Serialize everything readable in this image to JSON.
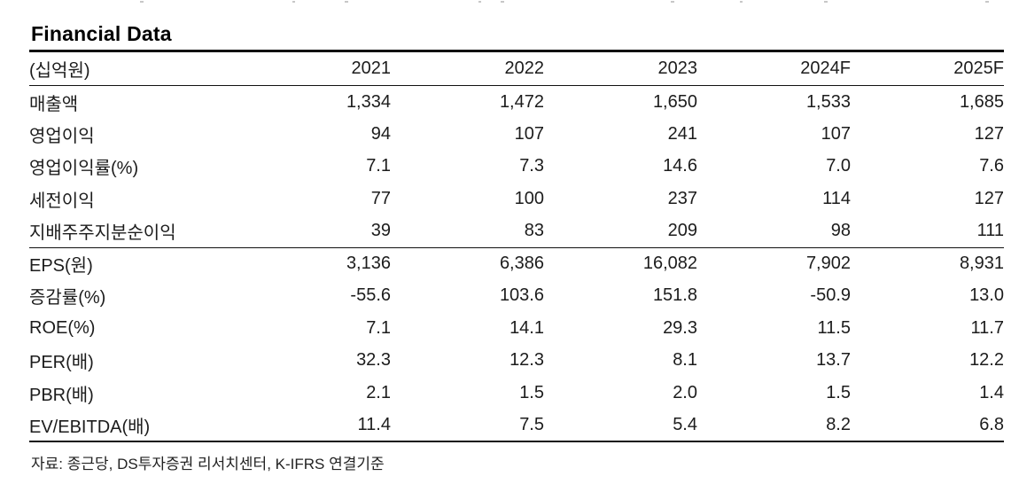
{
  "page": {
    "title": "Financial Data",
    "source_note": "자료: 종근당, DS투자증권 리서치센터, K-IFRS 연결기준"
  },
  "table": {
    "unit_label": "(십억원)",
    "year_headers": [
      "2021",
      "2022",
      "2023",
      "2024F",
      "2025F"
    ],
    "groups": [
      {
        "rows": [
          {
            "label": "매출액",
            "values": [
              "1,334",
              "1,472",
              "1,650",
              "1,533",
              "1,685"
            ]
          },
          {
            "label": "영업이익",
            "values": [
              "94",
              "107",
              "241",
              "107",
              "127"
            ]
          },
          {
            "label": "영업이익률(%)",
            "values": [
              "7.1",
              "7.3",
              "14.6",
              "7.0",
              "7.6"
            ]
          },
          {
            "label": "세전이익",
            "values": [
              "77",
              "100",
              "237",
              "114",
              "127"
            ]
          },
          {
            "label": "지배주주지분순이익",
            "values": [
              "39",
              "83",
              "209",
              "98",
              "111"
            ]
          }
        ]
      },
      {
        "rows": [
          {
            "label": "EPS(원)",
            "values": [
              "3,136",
              "6,386",
              "16,082",
              "7,902",
              "8,931"
            ]
          },
          {
            "label": "증감률(%)",
            "values": [
              "-55.6",
              "103.6",
              "151.8",
              "-50.9",
              "13.0"
            ]
          },
          {
            "label": "ROE(%)",
            "values": [
              "7.1",
              "14.1",
              "29.3",
              "11.5",
              "11.7"
            ]
          },
          {
            "label": "PER(배)",
            "values": [
              "32.3",
              "12.3",
              "8.1",
              "13.7",
              "12.2"
            ]
          },
          {
            "label": "PBR(배)",
            "values": [
              "2.1",
              "1.5",
              "2.0",
              "1.5",
              "1.4"
            ]
          },
          {
            "label": "EV/EBITDA(배)",
            "values": [
              "11.4",
              "7.5",
              "5.4",
              "8.2",
              "6.8"
            ]
          }
        ]
      }
    ]
  },
  "colors": {
    "text": "#1c1c1c",
    "rule": "#111111",
    "background": "#ffffff"
  }
}
